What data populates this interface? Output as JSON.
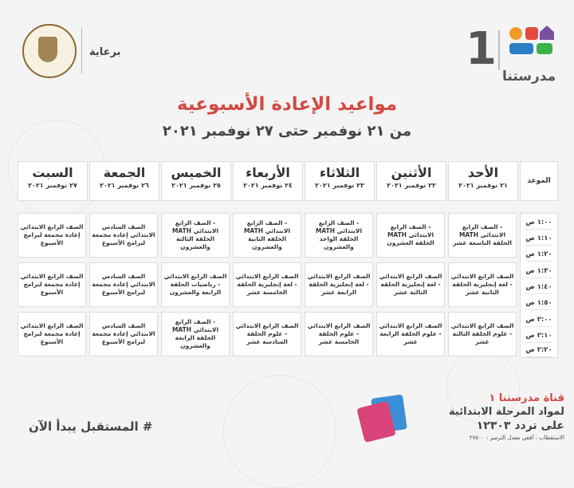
{
  "header": {
    "channel_number": "1",
    "brand_name": "مدرستنا",
    "sponsor_label": "برعاية",
    "title": "مواعيد الإعادة الأسبوعية",
    "subtitle": "من ٢١ نوفمبر حتى ٢٧ نوفمبر ٢٠٢١"
  },
  "schedule": {
    "time_header": "الموعد",
    "days": [
      {
        "name": "الأحد",
        "date": "٢١ نوفمبر ٢٠٢١"
      },
      {
        "name": "الأثنين",
        "date": "٢٢ نوفمبر ٢٠٢١"
      },
      {
        "name": "الثلاثاء",
        "date": "٢٣ نوفمبر ٢٠٢١"
      },
      {
        "name": "الأربعاء",
        "date": "٢٤ نوفمبر ٢٠٢١"
      },
      {
        "name": "الخميس",
        "date": "٢٥ نوفمبر ٢٠٢١"
      },
      {
        "name": "الجمعة",
        "date": "٢٦ نوفمبر ٢٠٢١"
      },
      {
        "name": "السبت",
        "date": "٢٧ نوفمبر ٢٠٢١"
      }
    ],
    "times": [
      "١:٠٠ ص",
      "١:١٠ ص",
      "١:٢٠ ص",
      "١:٣٠ ص",
      "١:٤٠ ص",
      "١:٥٠ ص",
      "٢:٠٠ ص",
      "٢:١٠ ص",
      "٢:٢٠ ص"
    ],
    "rows": [
      {
        "cells": [
          "- الصف الرابع الابتدائي MATH الحلقة التاسعة عشر",
          "- الصف الرابع الابتدائي MATH الحلقة العشرون",
          "- الصف الرابع الابتدائي MATH الحلقة الواحد والعشرون",
          "- الصف الرابع الابتدائي MATH الحلقة الثانية والعشرون",
          "- الصف الرابع الابتدائي MATH الحلقة الثالثة والعشرون",
          "الصف السادس الابتدائي إعادة مجمعة لبرامج الأسبوع",
          "الصف الرابع الابتدائي إعادة مجمعة لبرامج الأسبوع"
        ]
      },
      {
        "cells": [
          "الصف الرابع الابتدائي - لغة إنجليزية الحلقة الثانية عشر",
          "الصف الرابع الابتدائي - لغة إنجليزية الحلقة الثالثة عشر",
          "الصف الرابع الابتدائي - لغة إنجليزية الحلقة الرابعة عشر",
          "الصف الرابع الابتدائي - لغة إنجليزية الحلقة الخامسة عشر",
          "الصف الرابع الابتدائي - رياضيات الحلقة الرابعة والعشرون",
          "الصف السادس الابتدائي إعادة مجمعة لبرامج الأسبوع",
          "الصف الرابع الابتدائي إعادة مجمعة لبرامج الأسبوع"
        ]
      },
      {
        "cells": [
          "الصف الرابع الابتدائي - علوم الحلقة الثالثة عشر",
          "الصف الرابع الابتدائي - علوم الحلقة الرابعة عشر",
          "الصف الرابع الابتدائي - علوم الحلقة الخامسة عشر",
          "الصف الرابع الابتدائي - علوم الحلقة السادسة عشر",
          "- الصف الرابع الابتدائي MATH الحلقة الرابعة والعشرون",
          "الصف السادس الابتدائي إعادة مجمعة لبرامج الأسبوع",
          "الصف الرابع الابتدائي إعادة مجمعة لبرامج الأسبوع"
        ]
      }
    ]
  },
  "footer": {
    "hashtag": "# المستقبل يبدأ الآن",
    "promo_line1": "قناة مدرستنا ١",
    "promo_line2": "لمواد المرحلة الابتدائية",
    "promo_line3": "على تردد ١٢٣٠٣",
    "promo_line4": "الاستقطاب : أفقي معدل الترميز : ٢٧٥٠٠"
  },
  "colors": {
    "accent": "#d24a43",
    "logo_blue": "#2a7ec3",
    "logo_orange": "#f29a27",
    "logo_red": "#e24a3b",
    "logo_purple": "#7a4fa0",
    "logo_green": "#39b54a"
  }
}
